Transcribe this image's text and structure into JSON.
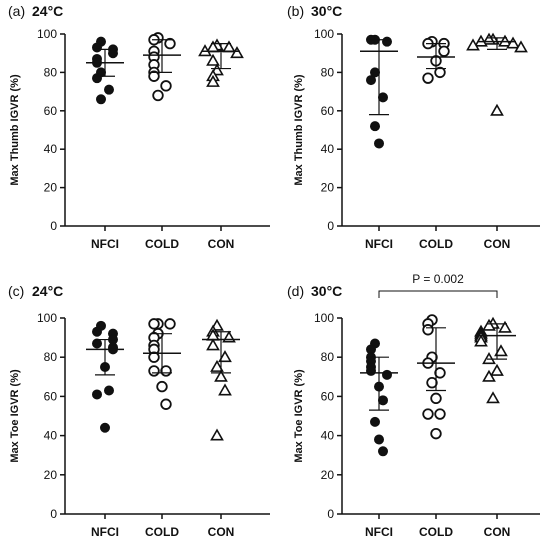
{
  "chart_data": [
    {
      "type": "scatter",
      "panel_label": "(a)",
      "title": "24°C",
      "ylabel": "Max Thumb IGVR (%)",
      "ylim": [
        0,
        100
      ],
      "yticks": [
        0,
        20,
        40,
        60,
        80,
        100
      ],
      "categories": [
        "NFCI",
        "COLD",
        "CON"
      ],
      "series": [
        {
          "category": "NFCI",
          "marker": "filled-circle",
          "values": [
            96,
            93,
            92,
            90,
            87,
            85,
            80,
            77,
            71,
            66
          ],
          "mean": 85,
          "sd_low": 78,
          "sd_high": 92
        },
        {
          "category": "COLD",
          "marker": "open-circle",
          "values": [
            98,
            97,
            95,
            91,
            88,
            84,
            80,
            78,
            73,
            68
          ],
          "mean": 89,
          "sd_low": 80,
          "sd_high": 97
        },
        {
          "category": "CON",
          "marker": "open-triangle",
          "values": [
            94,
            93,
            93,
            91,
            90,
            86,
            81,
            78,
            75
          ],
          "mean": 91,
          "sd_low": 82,
          "sd_high": 95
        }
      ]
    },
    {
      "type": "scatter",
      "panel_label": "(b)",
      "title": "30°C",
      "ylabel": "Max Thumb IGVR (%)",
      "ylim": [
        0,
        100
      ],
      "yticks": [
        0,
        20,
        40,
        60,
        80,
        100
      ],
      "categories": [
        "NFCI",
        "COLD",
        "CON"
      ],
      "series": [
        {
          "category": "NFCI",
          "marker": "filled-circle",
          "values": [
            97,
            97,
            96,
            80,
            76,
            67,
            52,
            43
          ],
          "mean": 91,
          "sd_low": 58,
          "sd_high": 97
        },
        {
          "category": "COLD",
          "marker": "open-circle",
          "values": [
            96,
            95,
            95,
            91,
            86,
            80,
            77
          ],
          "mean": 88,
          "sd_low": 82,
          "sd_high": 95
        },
        {
          "category": "CON",
          "marker": "open-triangle",
          "values": [
            97,
            97,
            96,
            96,
            95,
            94,
            93,
            60
          ],
          "mean": 96,
          "sd_low": 92,
          "sd_high": 98
        }
      ]
    },
    {
      "type": "scatter",
      "panel_label": "(c)",
      "title": "24°C",
      "ylabel": "Max Toe IGVR (%)",
      "ylim": [
        0,
        100
      ],
      "yticks": [
        0,
        20,
        40,
        60,
        80,
        100
      ],
      "categories": [
        "NFCI",
        "COLD",
        "CON"
      ],
      "series": [
        {
          "category": "NFCI",
          "marker": "filled-circle",
          "values": [
            96,
            93,
            92,
            89,
            87,
            85,
            84,
            75,
            63,
            61,
            44
          ],
          "mean": 84,
          "sd_low": 71,
          "sd_high": 89
        },
        {
          "category": "COLD",
          "marker": "open-circle",
          "values": [
            97,
            97,
            97,
            92,
            90,
            86,
            84,
            80,
            73,
            73,
            65,
            56
          ],
          "mean": 82,
          "sd_low": 72,
          "sd_high": 92
        },
        {
          "category": "CON",
          "marker": "open-triangle",
          "values": [
            96,
            93,
            91,
            90,
            86,
            80,
            75,
            70,
            63,
            40
          ],
          "mean": 89,
          "sd_low": 72,
          "sd_high": 93
        }
      ]
    },
    {
      "type": "scatter",
      "panel_label": "(d)",
      "title": "30°C",
      "ylabel": "Max Toe IGVR (%)",
      "ylim": [
        0,
        100
      ],
      "yticks": [
        0,
        20,
        40,
        60,
        80,
        100
      ],
      "categories": [
        "NFCI",
        "COLD",
        "CON"
      ],
      "annotation": {
        "text": "P = 0.002",
        "from": "NFCI",
        "to": "CON"
      },
      "series": [
        {
          "category": "NFCI",
          "marker": "filled-circle",
          "values": [
            87,
            84,
            80,
            78,
            75,
            73,
            71,
            65,
            58,
            47,
            38,
            32
          ],
          "mean": 72,
          "sd_low": 53,
          "sd_high": 80
        },
        {
          "category": "COLD",
          "marker": "open-circle",
          "values": [
            99,
            97,
            94,
            80,
            77,
            72,
            67,
            59,
            51,
            51,
            41
          ],
          "mean": 77,
          "sd_low": 63,
          "sd_high": 95
        },
        {
          "category": "CON",
          "marker": "open-triangle",
          "values": [
            97,
            96,
            95,
            93,
            92,
            91,
            90,
            88,
            83,
            79,
            73,
            70,
            59
          ],
          "mean": 91,
          "sd_low": 79,
          "sd_high": 97
        }
      ]
    }
  ]
}
